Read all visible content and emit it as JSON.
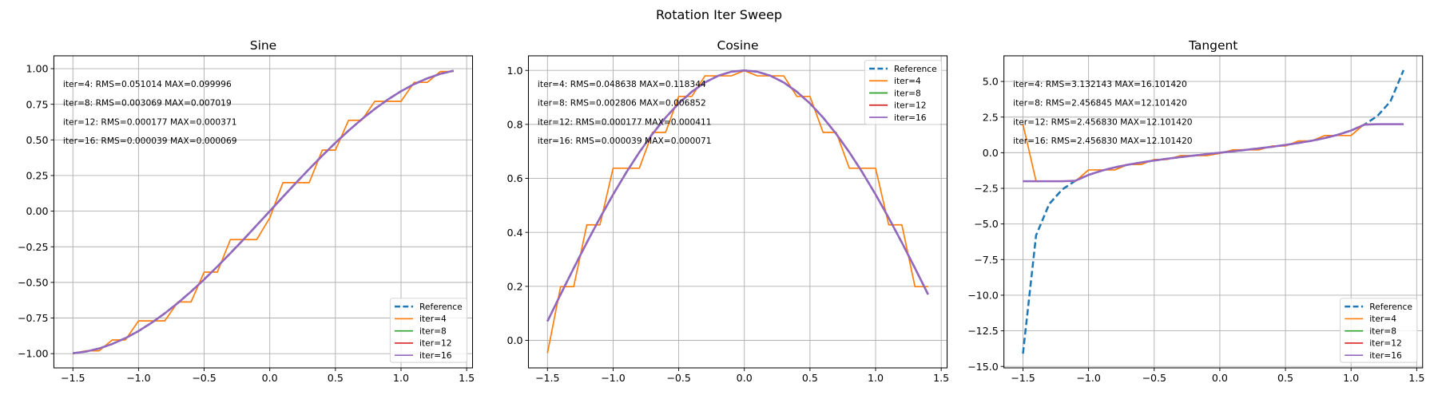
{
  "figure": {
    "title": "Rotation Iter Sweep"
  },
  "chart_data": [
    {
      "type": "line",
      "title": "Sine",
      "grid": true,
      "legend": "lower right",
      "xlim": [
        -1.645,
        1.545
      ],
      "ylim": [
        -1.1,
        1.09
      ],
      "xticks": [
        -1.5,
        -1.0,
        -0.5,
        0.0,
        0.5,
        1.0,
        1.5
      ],
      "xtick_labels": [
        "−1.5",
        "−1.0",
        "−0.5",
        "0.0",
        "0.5",
        "1.0",
        "1.5"
      ],
      "yticks": [
        -1.0,
        -0.75,
        -0.5,
        -0.25,
        0.0,
        0.25,
        0.5,
        0.75,
        1.0
      ],
      "ytick_labels": [
        "−1.00",
        "−0.75",
        "−0.50",
        "−0.25",
        "0.00",
        "0.25",
        "0.50",
        "0.75",
        "1.00"
      ],
      "annotations": [
        "iter=4: RMS=0.051014 MAX=0.099996",
        "iter=8: RMS=0.003069 MAX=0.007019",
        "iter=12: RMS=0.000177 MAX=0.000371",
        "iter=16: RMS=0.000039 MAX=0.000069"
      ],
      "x": [
        -1.5,
        -1.4,
        -1.3,
        -1.2,
        -1.1,
        -1.0,
        -0.9,
        -0.8,
        -0.7,
        -0.6,
        -0.5,
        -0.4,
        -0.3,
        -0.2,
        -0.1,
        0.0,
        0.1,
        0.2,
        0.3,
        0.4,
        0.5,
        0.6,
        0.7,
        0.8,
        0.9,
        1.0,
        1.1,
        1.2,
        1.3,
        1.4
      ],
      "series": [
        {
          "name": "Reference",
          "color": "#1f77b4",
          "style": "dashed",
          "values": [
            -0.9975,
            -0.9854,
            -0.9636,
            -0.932,
            -0.8912,
            -0.8415,
            -0.7833,
            -0.7174,
            -0.6442,
            -0.5646,
            -0.4794,
            -0.3894,
            -0.2955,
            -0.1987,
            -0.0998,
            0,
            0.0998,
            0.1987,
            0.2955,
            0.3894,
            0.4794,
            0.5646,
            0.6442,
            0.7174,
            0.7833,
            0.8415,
            0.8912,
            0.932,
            0.9636,
            0.9854
          ]
        },
        {
          "name": "iter=4",
          "color": "#ff7f0e",
          "style": "solid",
          "values": [
            -0.9989,
            -0.98,
            -0.98,
            -0.9038,
            -0.9038,
            -0.7703,
            -0.7703,
            -0.7703,
            -0.6373,
            -0.6373,
            -0.4281,
            -0.4281,
            -0.1998,
            -0.1998,
            -0.1998,
            -0.0476,
            0.1998,
            0.1998,
            0.1998,
            0.4281,
            0.4281,
            0.6373,
            0.6373,
            0.7703,
            0.7703,
            0.7703,
            0.9038,
            0.9038,
            0.98,
            0.98
          ]
        },
        {
          "name": "iter=8",
          "color": "#2ca02c",
          "style": "solid",
          "values": [
            -0.9975,
            -0.9854,
            -0.9636,
            -0.932,
            -0.8912,
            -0.8415,
            -0.7833,
            -0.7174,
            -0.6442,
            -0.5646,
            -0.4794,
            -0.3894,
            -0.2955,
            -0.1987,
            -0.0998,
            0,
            0.0998,
            0.1987,
            0.2955,
            0.3894,
            0.4794,
            0.5646,
            0.6442,
            0.7174,
            0.7833,
            0.8415,
            0.8912,
            0.932,
            0.9636,
            0.9854
          ]
        },
        {
          "name": "iter=12",
          "color": "#d62728",
          "style": "solid",
          "values": [
            -0.9975,
            -0.9854,
            -0.9636,
            -0.932,
            -0.8912,
            -0.8415,
            -0.7833,
            -0.7174,
            -0.6442,
            -0.5646,
            -0.4794,
            -0.3894,
            -0.2955,
            -0.1987,
            -0.0998,
            0,
            0.0998,
            0.1987,
            0.2955,
            0.3894,
            0.4794,
            0.5646,
            0.6442,
            0.7174,
            0.7833,
            0.8415,
            0.8912,
            0.932,
            0.9636,
            0.9854
          ]
        },
        {
          "name": "iter=16",
          "color": "#9467bd",
          "style": "solid",
          "values": [
            -0.9975,
            -0.9854,
            -0.9636,
            -0.932,
            -0.8912,
            -0.8415,
            -0.7833,
            -0.7174,
            -0.6442,
            -0.5646,
            -0.4794,
            -0.3894,
            -0.2955,
            -0.1987,
            -0.0998,
            0,
            0.0998,
            0.1987,
            0.2955,
            0.3894,
            0.4794,
            0.5646,
            0.6442,
            0.7174,
            0.7833,
            0.8415,
            0.8912,
            0.932,
            0.9636,
            0.9854
          ]
        }
      ]
    },
    {
      "type": "line",
      "title": "Cosine",
      "grid": true,
      "legend": "upper right",
      "xlim": [
        -1.645,
        1.545
      ],
      "ylim": [
        -0.102,
        1.054
      ],
      "xticks": [
        -1.5,
        -1.0,
        -0.5,
        0.0,
        0.5,
        1.0,
        1.5
      ],
      "xtick_labels": [
        "−1.5",
        "−1.0",
        "−0.5",
        "0.0",
        "0.5",
        "1.0",
        "1.5"
      ],
      "yticks": [
        0.0,
        0.2,
        0.4,
        0.6,
        0.8,
        1.0
      ],
      "ytick_labels": [
        "0.0",
        "0.2",
        "0.4",
        "0.6",
        "0.8",
        "1.0"
      ],
      "annotations": [
        "iter=4: RMS=0.048638 MAX=0.118344",
        "iter=8: RMS=0.002806 MAX=0.006852",
        "iter=12: RMS=0.000177 MAX=0.000411",
        "iter=16: RMS=0.000039 MAX=0.000071"
      ],
      "x": [
        -1.5,
        -1.4,
        -1.3,
        -1.2,
        -1.1,
        -1.0,
        -0.9,
        -0.8,
        -0.7,
        -0.6,
        -0.5,
        -0.4,
        -0.3,
        -0.2,
        -0.1,
        0.0,
        0.1,
        0.2,
        0.3,
        0.4,
        0.5,
        0.6,
        0.7,
        0.8,
        0.9,
        1.0,
        1.1,
        1.2,
        1.3,
        1.4
      ],
      "series": [
        {
          "name": "Reference",
          "color": "#1f77b4",
          "style": "dashed",
          "values": [
            0.0707,
            0.17,
            0.2675,
            0.3624,
            0.4536,
            0.5403,
            0.6216,
            0.6967,
            0.7648,
            0.8253,
            0.8776,
            0.9211,
            0.9553,
            0.9801,
            0.995,
            1,
            0.995,
            0.9801,
            0.9553,
            0.9211,
            0.8776,
            0.8253,
            0.7648,
            0.6967,
            0.6216,
            0.5403,
            0.4536,
            0.3624,
            0.2675,
            0.17
          ]
        },
        {
          "name": "iter=4",
          "color": "#ff7f0e",
          "style": "solid",
          "values": [
            -0.0476,
            0.199,
            0.199,
            0.428,
            0.428,
            0.6376,
            0.6376,
            0.6376,
            0.7704,
            0.7704,
            0.9037,
            0.9037,
            0.9798,
            0.9798,
            0.9798,
            0.9989,
            0.9798,
            0.9798,
            0.9798,
            0.9037,
            0.9037,
            0.7704,
            0.7704,
            0.6376,
            0.6376,
            0.6376,
            0.428,
            0.428,
            0.199,
            0.199
          ]
        },
        {
          "name": "iter=8",
          "color": "#2ca02c",
          "style": "solid",
          "values": [
            0.0707,
            0.17,
            0.2675,
            0.3624,
            0.4536,
            0.5403,
            0.6216,
            0.6967,
            0.7648,
            0.8253,
            0.8776,
            0.9211,
            0.9553,
            0.9801,
            0.995,
            1,
            0.995,
            0.9801,
            0.9553,
            0.9211,
            0.8776,
            0.8253,
            0.7648,
            0.6967,
            0.6216,
            0.5403,
            0.4536,
            0.3624,
            0.2675,
            0.17
          ]
        },
        {
          "name": "iter=12",
          "color": "#d62728",
          "style": "solid",
          "values": [
            0.0707,
            0.17,
            0.2675,
            0.3624,
            0.4536,
            0.5403,
            0.6216,
            0.6967,
            0.7648,
            0.8253,
            0.8776,
            0.9211,
            0.9553,
            0.9801,
            0.995,
            1,
            0.995,
            0.9801,
            0.9553,
            0.9211,
            0.8776,
            0.8253,
            0.7648,
            0.6967,
            0.6216,
            0.5403,
            0.4536,
            0.3624,
            0.2675,
            0.17
          ]
        },
        {
          "name": "iter=16",
          "color": "#9467bd",
          "style": "solid",
          "values": [
            0.0707,
            0.17,
            0.2675,
            0.3624,
            0.4536,
            0.5403,
            0.6216,
            0.6967,
            0.7648,
            0.8253,
            0.8776,
            0.9211,
            0.9553,
            0.9801,
            0.995,
            1,
            0.995,
            0.9801,
            0.9553,
            0.9211,
            0.8776,
            0.8253,
            0.7648,
            0.6967,
            0.6216,
            0.5403,
            0.4536,
            0.3624,
            0.2675,
            0.17
          ]
        }
      ]
    },
    {
      "type": "line",
      "title": "Tangent",
      "grid": true,
      "legend": "lower right",
      "xlim": [
        -1.645,
        1.545
      ],
      "ylim": [
        -15.1,
        6.8
      ],
      "xticks": [
        -1.5,
        -1.0,
        -0.5,
        0.0,
        0.5,
        1.0,
        1.5
      ],
      "xtick_labels": [
        "−1.5",
        "−1.0",
        "−0.5",
        "0.0",
        "0.5",
        "1.0",
        "1.5"
      ],
      "yticks": [
        -15.0,
        -12.5,
        -10.0,
        -7.5,
        -5.0,
        -2.5,
        0.0,
        2.5,
        5.0
      ],
      "ytick_labels": [
        "−15.0",
        "−12.5",
        "−10.0",
        "−7.5",
        "−5.0",
        "−2.5",
        "0.0",
        "2.5",
        "5.0"
      ],
      "annotations": [
        "iter=4: RMS=3.132143 MAX=16.101420",
        "iter=8: RMS=2.456845 MAX=12.101420",
        "iter=12: RMS=2.456830 MAX=12.101420",
        "iter=16: RMS=2.456830 MAX=12.101420"
      ],
      "x": [
        -1.5,
        -1.4,
        -1.3,
        -1.2,
        -1.1,
        -1.0,
        -0.9,
        -0.8,
        -0.7,
        -0.6,
        -0.5,
        -0.4,
        -0.3,
        -0.2,
        -0.1,
        0.0,
        0.1,
        0.2,
        0.3,
        0.4,
        0.5,
        0.6,
        0.7,
        0.8,
        0.9,
        1.0,
        1.1,
        1.2,
        1.3,
        1.4
      ],
      "series": [
        {
          "name": "Reference",
          "color": "#1f77b4",
          "style": "dashed",
          "values": [
            -14.1014,
            -5.7979,
            -3.6021,
            -2.5722,
            -1.9648,
            -1.5574,
            -1.2602,
            -1.0296,
            -0.8423,
            -0.6841,
            -0.5463,
            -0.4228,
            -0.3093,
            -0.2027,
            -0.1003,
            0,
            0.1003,
            0.2027,
            0.3093,
            0.4228,
            0.5463,
            0.6841,
            0.8423,
            1.0296,
            1.2602,
            1.5574,
            1.9648,
            2.5722,
            3.6021,
            5.7979
          ]
        },
        {
          "name": "iter=4",
          "color": "#ff7f0e",
          "style": "solid",
          "values": [
            2,
            -2,
            -2,
            -2,
            -2,
            -1.208,
            -1.208,
            -1.208,
            -0.827,
            -0.827,
            -0.474,
            -0.474,
            -0.204,
            -0.204,
            -0.204,
            -0.048,
            0.204,
            0.204,
            0.204,
            0.474,
            0.474,
            0.827,
            0.827,
            1.208,
            1.208,
            1.208,
            2,
            2,
            2,
            2
          ]
        },
        {
          "name": "iter=8",
          "color": "#2ca02c",
          "style": "solid",
          "values": [
            -2,
            -2,
            -2,
            -2,
            -1.9648,
            -1.5574,
            -1.2602,
            -1.0296,
            -0.8423,
            -0.6841,
            -0.5463,
            -0.4228,
            -0.3093,
            -0.2027,
            -0.1003,
            0,
            0.1003,
            0.2027,
            0.3093,
            0.4228,
            0.5463,
            0.6841,
            0.8423,
            1.0296,
            1.2602,
            1.5574,
            1.9648,
            2,
            2,
            2
          ]
        },
        {
          "name": "iter=12",
          "color": "#d62728",
          "style": "solid",
          "values": [
            -2,
            -2,
            -2,
            -2,
            -1.9648,
            -1.5574,
            -1.2602,
            -1.0296,
            -0.8423,
            -0.6841,
            -0.5463,
            -0.4228,
            -0.3093,
            -0.2027,
            -0.1003,
            0,
            0.1003,
            0.2027,
            0.3093,
            0.4228,
            0.5463,
            0.6841,
            0.8423,
            1.0296,
            1.2602,
            1.5574,
            1.9648,
            2,
            2,
            2
          ]
        },
        {
          "name": "iter=16",
          "color": "#9467bd",
          "style": "solid",
          "values": [
            -2,
            -2,
            -2,
            -2,
            -1.9648,
            -1.5574,
            -1.2602,
            -1.0296,
            -0.8423,
            -0.6841,
            -0.5463,
            -0.4228,
            -0.3093,
            -0.2027,
            -0.1003,
            0,
            0.1003,
            0.2027,
            0.3093,
            0.4228,
            0.5463,
            0.6841,
            0.8423,
            1.0296,
            1.2602,
            1.5574,
            1.9648,
            2,
            2,
            2
          ]
        }
      ]
    }
  ]
}
